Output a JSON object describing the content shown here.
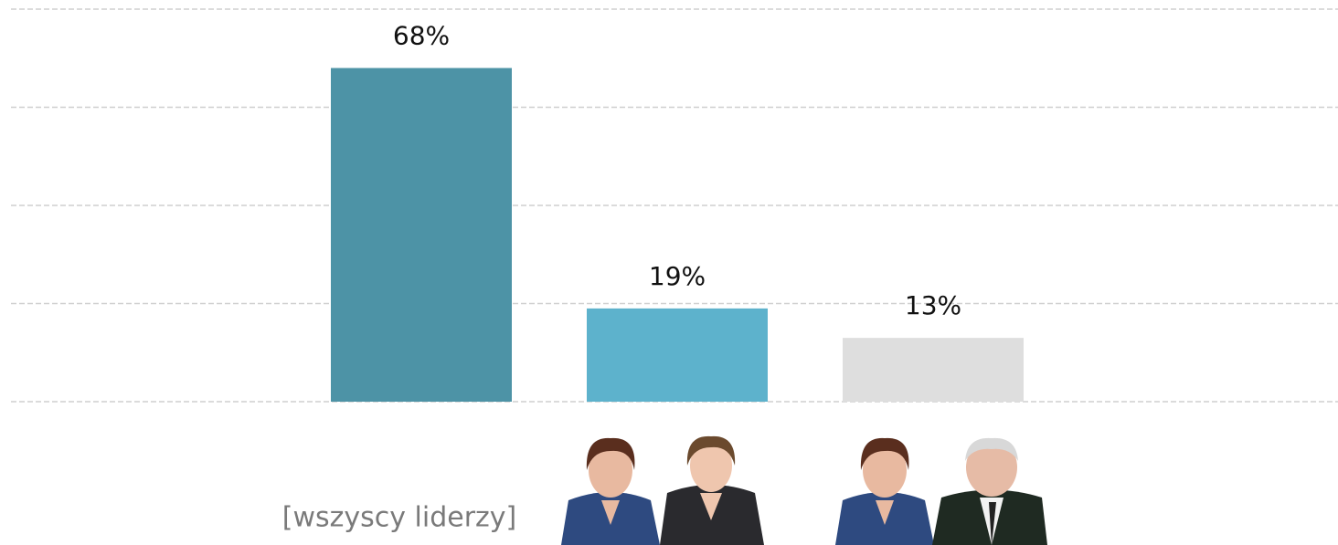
{
  "chart_data": {
    "type": "bar",
    "categories": [
      "[wszyscy liderzy]",
      null,
      null
    ],
    "values": [
      68,
      19,
      13
    ],
    "value_labels": [
      "68%",
      "19%",
      "13%"
    ],
    "colors": [
      "#4d93a6",
      "#5db2cc",
      "#dedede"
    ],
    "ylim": [
      0,
      80
    ],
    "yticks": [
      0,
      20,
      40,
      60,
      80
    ],
    "grid": true
  }
}
